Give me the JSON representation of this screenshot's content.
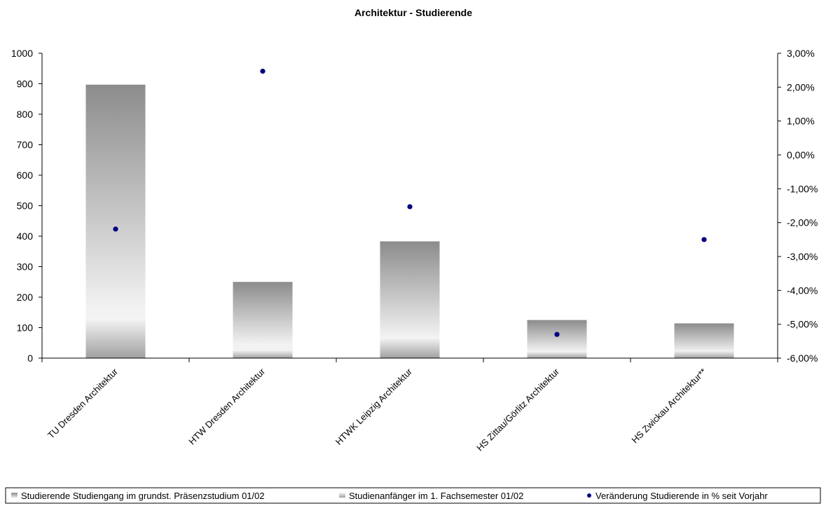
{
  "chart_data": {
    "type": "bar",
    "title": "Architektur - Studierende",
    "categories": [
      "TU Dresden Architektur",
      "HTW Dresden Architektur",
      "HTWK Leipzig Architektur",
      "HS Zittau/Görlitz Architektur",
      "HS Zwickau Architektur**"
    ],
    "series": [
      {
        "name": "Studierende Studiengang im grundst. Präsenzstudium 01/02",
        "axis": "left",
        "kind": "bar",
        "values": [
          897,
          250,
          383,
          125,
          114
        ]
      },
      {
        "name": "Studienanfänger im 1. Fachsemester 01/02",
        "axis": "left",
        "kind": "bar-overlay",
        "values": [
          133,
          27,
          68,
          22,
          25
        ]
      },
      {
        "name": "Veränderung Studierende in % seit Vorjahr",
        "axis": "right",
        "kind": "scatter",
        "values": [
          -2.19,
          2.47,
          -1.53,
          -5.3,
          -2.5
        ]
      }
    ],
    "y_left": {
      "ylim": [
        0,
        1000
      ],
      "ticks": [
        0,
        100,
        200,
        300,
        400,
        500,
        600,
        700,
        800,
        900,
        1000
      ],
      "tick_labels": [
        "0",
        "100",
        "200",
        "300",
        "400",
        "500",
        "600",
        "700",
        "800",
        "900",
        "1000"
      ]
    },
    "y_right": {
      "ylim": [
        -6,
        3
      ],
      "ticks": [
        -6,
        -5,
        -4,
        -3,
        -2,
        -1,
        0,
        1,
        2,
        3
      ],
      "tick_labels": [
        "-6,00%",
        "-5,00%",
        "-4,00%",
        "-3,00%",
        "-2,00%",
        "-1,00%",
        "0,00%",
        "1,00%",
        "2,00%",
        "3,00%"
      ]
    },
    "grid": false,
    "legend_position": "bottom",
    "colors": {
      "bar_dark": "#8c8c8c",
      "bar_light": "#f2f2f2",
      "dot": "#000080",
      "axis": "#000000"
    }
  }
}
